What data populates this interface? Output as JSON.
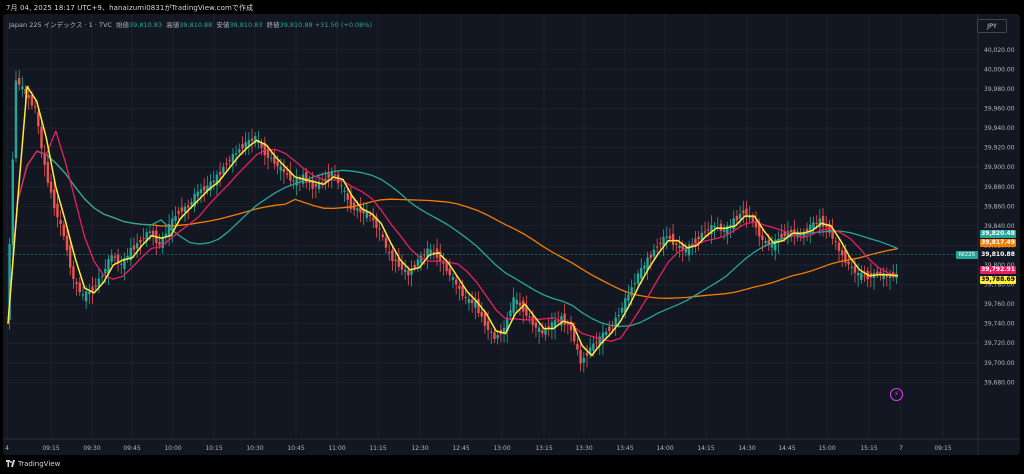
{
  "caption": "7月 04, 2025 18:17 UTC+9、hanaizumi0831がTradingView.comで作成",
  "legend": {
    "symbol": "Japan 225 インデックス · 1 · TVC",
    "open_label": "始値",
    "open": "39,810.83",
    "high_label": "高値",
    "high": "39,810.88",
    "low_label": "安値",
    "low": "39,810.83",
    "close_label": "終値",
    "close": "39,810.88",
    "change": "+31.50 (+0.08%)"
  },
  "currency": "JPY",
  "footer_brand": "TradingView",
  "symbol_tag": "NI225",
  "alert_icon": "lightning-icon",
  "colors": {
    "background": "#131722",
    "grid": "#1e222d",
    "up": "#26a69a",
    "down": "#ef5350",
    "yellow_ma": "#ffeb3b",
    "pink_ma": "#e91e63",
    "teal_ma": "#26a69a",
    "orange_ma": "#f57c00"
  },
  "chart_data": {
    "type": "candlestick",
    "x_ticks": [
      "4",
      "09:15",
      "09:30",
      "09:45",
      "10:00",
      "10:15",
      "10:30",
      "10:45",
      "11:00",
      "11:15",
      "12:30",
      "12:45",
      "13:00",
      "13:15",
      "13:30",
      "13:45",
      "14:00",
      "14:15",
      "14:30",
      "14:45",
      "15:00",
      "15:15",
      "7",
      "09:15"
    ],
    "y_ticks": [
      39680,
      39700,
      39720,
      39740,
      39760,
      39780,
      39800,
      39820,
      39840,
      39860,
      39880,
      39900,
      39920,
      39940,
      39960,
      39980,
      40000,
      40020
    ],
    "y_tick_labels": [
      "39,680.00",
      "39,700.00",
      "39,720.00",
      "39,740.00",
      "39,760.00",
      "39,780.00",
      "39,800.00",
      "39,820.00",
      "39,840.00",
      "39,860.00",
      "39,880.00",
      "39,900.00",
      "39,920.00",
      "39,940.00",
      "39,960.00",
      "39,980.00",
      "40,000.00",
      "40,020.00"
    ],
    "ylim": [
      39664,
      40026
    ],
    "close_price_path": [
      [
        0,
        39740
      ],
      [
        1,
        39990
      ],
      [
        2,
        39975
      ],
      [
        3,
        39960
      ],
      [
        4,
        39900
      ],
      [
        5,
        39860
      ],
      [
        6,
        39830
      ],
      [
        7,
        39785
      ],
      [
        8,
        39768
      ],
      [
        9,
        39775
      ],
      [
        10,
        39790
      ],
      [
        11,
        39810
      ],
      [
        12,
        39800
      ],
      [
        13,
        39815
      ],
      [
        14,
        39825
      ],
      [
        15,
        39835
      ],
      [
        16,
        39820
      ],
      [
        17,
        39840
      ],
      [
        18,
        39855
      ],
      [
        19,
        39860
      ],
      [
        20,
        39875
      ],
      [
        21,
        39880
      ],
      [
        22,
        39890
      ],
      [
        23,
        39905
      ],
      [
        24,
        39915
      ],
      [
        25,
        39925
      ],
      [
        26,
        39930
      ],
      [
        27,
        39915
      ],
      [
        28,
        39905
      ],
      [
        29,
        39895
      ],
      [
        30,
        39885
      ],
      [
        31,
        39890
      ],
      [
        32,
        39880
      ],
      [
        33,
        39885
      ],
      [
        34,
        39895
      ],
      [
        35,
        39880
      ],
      [
        36,
        39860
      ],
      [
        37,
        39855
      ],
      [
        38,
        39850
      ],
      [
        39,
        39835
      ],
      [
        40,
        39810
      ],
      [
        41,
        39800
      ],
      [
        42,
        39790
      ],
      [
        43,
        39805
      ],
      [
        44,
        39815
      ],
      [
        45,
        39810
      ],
      [
        46,
        39795
      ],
      [
        47,
        39780
      ],
      [
        48,
        39765
      ],
      [
        49,
        39760
      ],
      [
        50,
        39740
      ],
      [
        51,
        39725
      ],
      [
        52,
        39735
      ],
      [
        53,
        39765
      ],
      [
        54,
        39755
      ],
      [
        55,
        39740
      ],
      [
        56,
        39730
      ],
      [
        57,
        39740
      ],
      [
        58,
        39745
      ],
      [
        59,
        39735
      ],
      [
        60,
        39700
      ],
      [
        61,
        39715
      ],
      [
        62,
        39725
      ],
      [
        63,
        39735
      ],
      [
        64,
        39750
      ],
      [
        65,
        39770
      ],
      [
        66,
        39790
      ],
      [
        67,
        39805
      ],
      [
        68,
        39820
      ],
      [
        69,
        39830
      ],
      [
        70,
        39820
      ],
      [
        71,
        39815
      ],
      [
        72,
        39825
      ],
      [
        73,
        39835
      ],
      [
        74,
        39840
      ],
      [
        75,
        39835
      ],
      [
        76,
        39845
      ],
      [
        77,
        39855
      ],
      [
        78,
        39845
      ],
      [
        79,
        39825
      ],
      [
        80,
        39820
      ],
      [
        81,
        39830
      ],
      [
        82,
        39835
      ],
      [
        83,
        39830
      ],
      [
        84,
        39840
      ],
      [
        85,
        39845
      ],
      [
        86,
        39835
      ],
      [
        87,
        39815
      ],
      [
        88,
        39800
      ],
      [
        89,
        39790
      ],
      [
        90,
        39788
      ],
      [
        91,
        39792
      ],
      [
        92,
        39788
      ],
      [
        93,
        39790
      ]
    ],
    "series": [
      {
        "name": "",
        "color": "#ffeb3b",
        "last_value": "39,788.69"
      },
      {
        "name": "",
        "color": "#e91e63",
        "last_value": "39,792.91"
      },
      {
        "name": "",
        "color": "#26a69a",
        "last_value": "39,820.48"
      },
      {
        "name": "",
        "color": "#f57c00",
        "last_value": "39,817.49"
      }
    ],
    "last_price": "39,810.88",
    "grid": true,
    "legend_position": "top-left"
  }
}
